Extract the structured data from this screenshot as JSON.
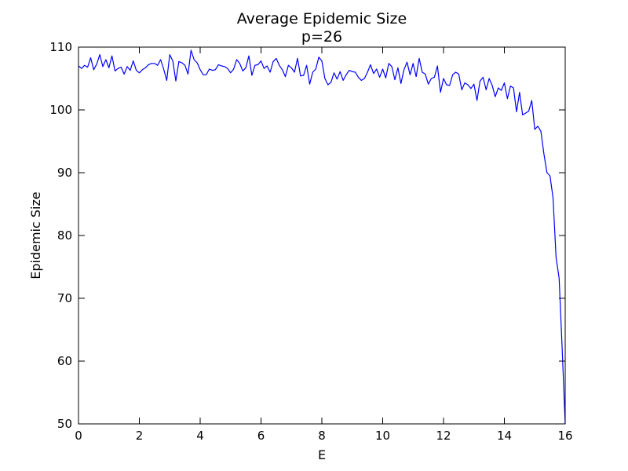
{
  "chart_data": {
    "type": "line",
    "title": "Average Epidemic Size",
    "subtitle": "p=26",
    "xlabel": "E",
    "ylabel": "Epidemic Size",
    "xlim": [
      0,
      16
    ],
    "ylim": [
      50,
      110
    ],
    "xticks": [
      0,
      2,
      4,
      6,
      8,
      10,
      12,
      14,
      16
    ],
    "yticks": [
      50,
      60,
      70,
      80,
      90,
      100,
      110
    ],
    "grid": false,
    "line_color": "#0000ff",
    "series": [
      {
        "x": [
          0.0,
          0.1,
          0.2,
          0.3,
          0.4,
          0.5,
          0.6,
          0.7,
          0.8,
          0.9,
          1.0,
          1.1,
          1.2,
          1.3,
          1.4,
          1.5,
          1.6,
          1.7,
          1.8,
          1.9,
          2.0,
          2.1,
          2.2,
          2.3,
          2.4,
          2.5,
          2.6,
          2.7,
          2.8,
          2.9,
          3.0,
          3.1,
          3.2,
          3.3,
          3.4,
          3.5,
          3.6,
          3.7,
          3.8,
          3.9,
          4.0,
          4.1,
          4.2,
          4.3,
          4.4,
          4.5,
          4.6,
          4.7,
          4.8,
          4.9,
          5.0,
          5.1,
          5.2,
          5.3,
          5.4,
          5.5,
          5.6,
          5.7,
          5.8,
          5.9,
          6.0,
          6.1,
          6.2,
          6.3,
          6.4,
          6.5,
          6.6,
          6.7,
          6.8,
          6.9,
          7.0,
          7.1,
          7.2,
          7.3,
          7.4,
          7.5,
          7.6,
          7.7,
          7.8,
          7.9,
          8.0,
          8.1,
          8.2,
          8.3,
          8.4,
          8.5,
          8.6,
          8.7,
          8.8,
          8.9,
          9.0,
          9.1,
          9.2,
          9.3,
          9.4,
          9.5,
          9.6,
          9.7,
          9.8,
          9.9,
          10.0,
          10.1,
          10.2,
          10.3,
          10.4,
          10.5,
          10.6,
          10.7,
          10.8,
          10.9,
          11.0,
          11.1,
          11.2,
          11.3,
          11.4,
          11.5,
          11.6,
          11.7,
          11.8,
          11.9,
          12.0,
          12.1,
          12.2,
          12.3,
          12.4,
          12.5,
          12.6,
          12.7,
          12.8,
          12.9,
          13.0,
          13.1,
          13.2,
          13.3,
          13.4,
          13.5,
          13.6,
          13.7,
          13.8,
          13.9,
          14.0,
          14.1,
          14.2,
          14.3,
          14.4,
          14.5,
          14.6,
          14.7,
          14.8,
          14.9,
          15.0,
          15.1,
          15.2,
          15.3,
          15.4,
          15.5,
          15.6,
          15.7,
          15.8,
          15.9,
          16.0
        ],
        "values": [
          107.0,
          106.6,
          107.1,
          106.8,
          108.3,
          106.4,
          107.3,
          108.8,
          106.9,
          108.0,
          106.7,
          108.6,
          106.2,
          106.6,
          106.8,
          105.7,
          106.9,
          106.3,
          107.8,
          106.3,
          105.9,
          106.4,
          106.7,
          107.2,
          107.4,
          107.4,
          107.1,
          108.0,
          106.5,
          104.7,
          108.8,
          107.8,
          104.6,
          107.7,
          107.5,
          107.1,
          105.7,
          109.5,
          108.0,
          107.5,
          106.4,
          105.6,
          105.6,
          106.5,
          106.3,
          106.4,
          107.2,
          107.0,
          106.9,
          106.6,
          105.9,
          106.5,
          108.0,
          107.4,
          106.2,
          106.7,
          108.6,
          105.5,
          107.1,
          107.2,
          107.8,
          106.6,
          107.0,
          106.0,
          107.7,
          108.2,
          107.1,
          106.4,
          105.3,
          107.1,
          106.7,
          106.0,
          108.2,
          105.4,
          105.5,
          107.1,
          104.1,
          106.0,
          106.5,
          108.4,
          107.8,
          105.0,
          104.0,
          104.4,
          105.9,
          104.9,
          106.1,
          104.7,
          105.6,
          106.3,
          106.1,
          106.0,
          105.2,
          104.7,
          105.0,
          106.0,
          107.2,
          105.8,
          106.5,
          105.2,
          106.5,
          105.1,
          107.4,
          106.9,
          104.8,
          106.7,
          104.2,
          106.4,
          107.6,
          105.6,
          107.4,
          105.3,
          108.2,
          106.0,
          105.7,
          104.1,
          105.0,
          105.2,
          107.0,
          102.8,
          105.0,
          104.0,
          103.9,
          105.6,
          106.0,
          105.7,
          103.2,
          104.3,
          104.0,
          103.4,
          104.1,
          101.5,
          104.6,
          105.2,
          103.2,
          105.0,
          103.9,
          102.1,
          103.5,
          103.1,
          104.3,
          101.8,
          103.8,
          103.5,
          99.7,
          102.8,
          99.2,
          99.5,
          99.8,
          101.5,
          96.9,
          97.4,
          96.6,
          93.0,
          90.0,
          89.5,
          86.0,
          76.5,
          73.2,
          62.0,
          50.0
        ]
      }
    ]
  }
}
